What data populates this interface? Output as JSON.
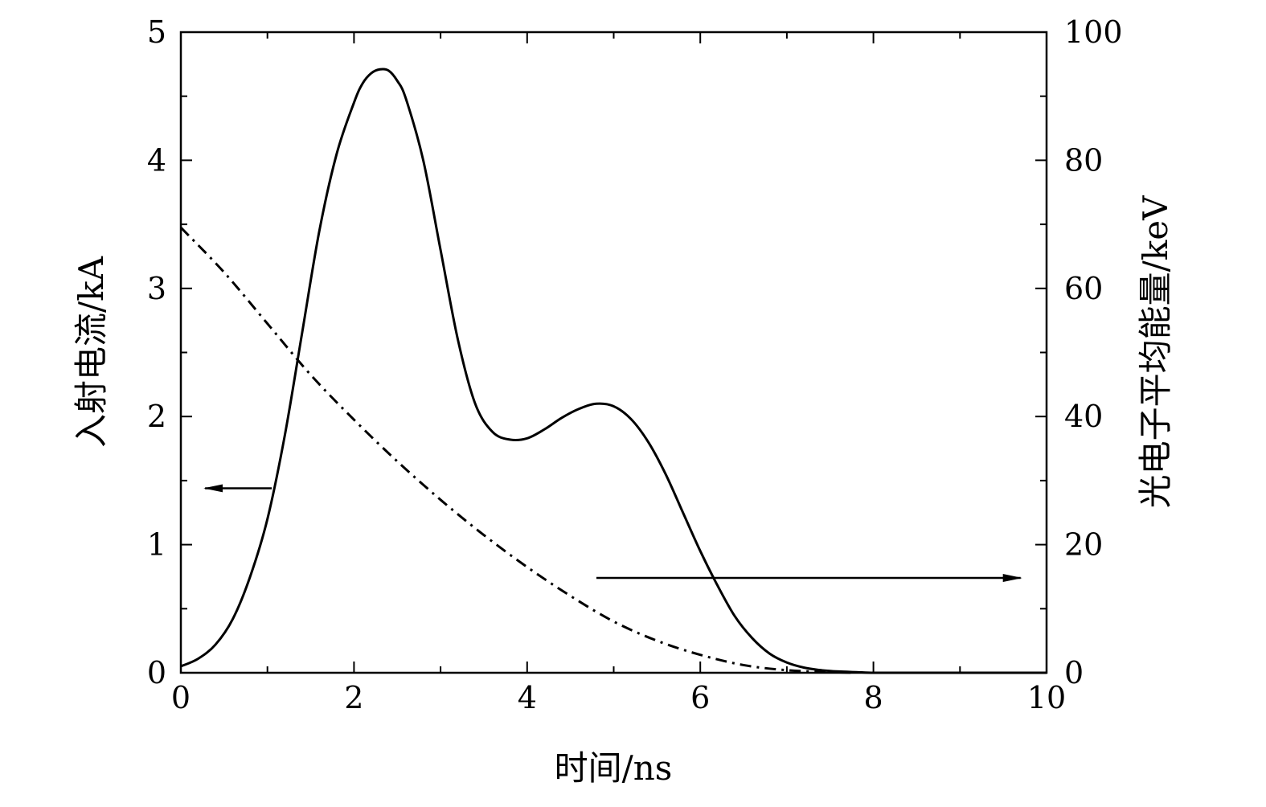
{
  "chart_data": {
    "type": "line",
    "xlabel": "时间/ns",
    "ylabel_left": "入射电流/kA",
    "ylabel_right": "光电子平均能量/keV",
    "xlim": [
      0,
      10
    ],
    "ylim_left": [
      0,
      5
    ],
    "ylim_right": [
      0,
      100
    ],
    "x_ticks": [
      0,
      2,
      4,
      6,
      8,
      10
    ],
    "y_left_ticks": [
      0,
      1,
      2,
      3,
      4,
      5
    ],
    "y_right_ticks": [
      0,
      20,
      40,
      60,
      80,
      100
    ],
    "grid": false,
    "series": [
      {
        "axis": "left",
        "style": "solid",
        "color": "#000000",
        "x": [
          0,
          0.2,
          0.4,
          0.6,
          0.8,
          1.0,
          1.2,
          1.4,
          1.6,
          1.8,
          2.0,
          2.1,
          2.2,
          2.3,
          2.4,
          2.5,
          2.6,
          2.8,
          3.0,
          3.2,
          3.4,
          3.6,
          3.8,
          4.0,
          4.2,
          4.4,
          4.6,
          4.8,
          5.0,
          5.2,
          5.4,
          5.6,
          5.8,
          6.0,
          6.2,
          6.4,
          6.6,
          6.8,
          7.0,
          7.2,
          7.4,
          7.6,
          7.8,
          8.0,
          8.2,
          8.5,
          9.0,
          9.5,
          10.0
        ],
        "y": [
          0.05,
          0.11,
          0.22,
          0.42,
          0.75,
          1.2,
          1.85,
          2.65,
          3.45,
          4.05,
          4.45,
          4.6,
          4.68,
          4.71,
          4.7,
          4.62,
          4.48,
          4.0,
          3.3,
          2.6,
          2.1,
          1.88,
          1.82,
          1.83,
          1.9,
          1.99,
          2.06,
          2.1,
          2.08,
          1.98,
          1.8,
          1.55,
          1.25,
          0.95,
          0.68,
          0.44,
          0.27,
          0.15,
          0.08,
          0.04,
          0.02,
          0.01,
          0.005,
          0.0,
          0.0,
          0.0,
          0.0,
          0.0,
          0.0
        ]
      },
      {
        "axis": "right",
        "style": "dash-dot",
        "color": "#000000",
        "x": [
          0,
          0.5,
          1.0,
          1.5,
          2.0,
          2.5,
          3.0,
          3.5,
          4.0,
          4.5,
          5.0,
          5.5,
          6.0,
          6.5,
          7.0,
          7.5,
          7.8
        ],
        "y": [
          69.5,
          62.5,
          54.5,
          46.5,
          39.5,
          33.0,
          27.0,
          21.5,
          16.5,
          12.0,
          8.0,
          5.0,
          2.8,
          1.2,
          0.4,
          0.1,
          0.0
        ]
      }
    ],
    "annotations": [
      {
        "type": "arrow",
        "direction": "left",
        "points_to_axis": "left",
        "x_from": 1.05,
        "x_to": 0.28,
        "y_left": 1.44
      },
      {
        "type": "arrow",
        "direction": "right",
        "points_to_axis": "right",
        "x_from": 4.8,
        "x_to": 9.7,
        "y_left": 0.74
      }
    ]
  }
}
